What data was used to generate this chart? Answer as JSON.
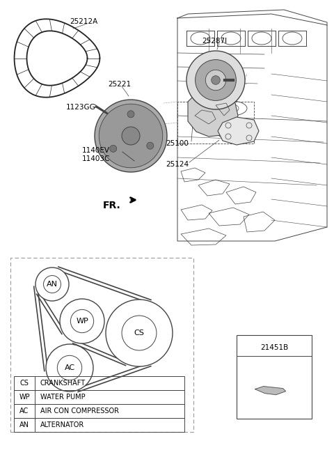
{
  "bg_color": "#ffffff",
  "legend_rows": [
    [
      "AN",
      "ALTERNATOR"
    ],
    [
      "AC",
      "AIR CON COMPRESSOR"
    ],
    [
      "WP",
      "WATER PUMP"
    ],
    [
      "CS",
      "CRANKSHAFT"
    ]
  ],
  "part_box_label": "21451B",
  "fr_label": "FR.",
  "gray": "#444444",
  "lgray": "#aaaaaa",
  "dgray": "#222222"
}
